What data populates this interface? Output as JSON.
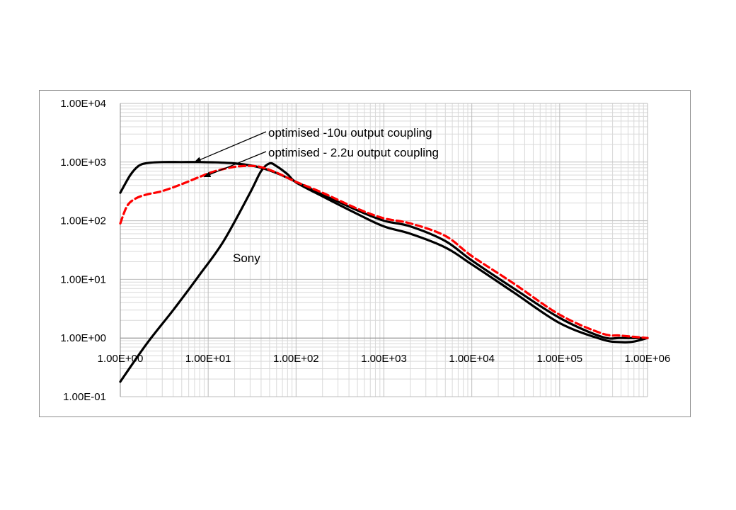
{
  "chart_data": {
    "type": "line",
    "x_scale": "log",
    "y_scale": "log",
    "xlim": [
      1,
      1000000
    ],
    "ylim": [
      0.1,
      10000
    ],
    "x_ticks": [
      "1.00E+00",
      "1.00E+01",
      "1.00E+02",
      "1.00E+03",
      "1.00E+04",
      "1.00E+05",
      "1.00E+06"
    ],
    "y_ticks": [
      "1.00E-01",
      "1.00E+00",
      "1.00E+01",
      "1.00E+02",
      "1.00E+03",
      "1.00E+04"
    ],
    "grid": "major and minor",
    "legend": "none",
    "series": [
      {
        "name": "optimised -10u output coupling",
        "color": "#000000",
        "style": "solid",
        "x": [
          1,
          1.3,
          1.6,
          2,
          3,
          5,
          8,
          12,
          20,
          30,
          40,
          60,
          100,
          200,
          500,
          1000,
          2000,
          5000,
          10000,
          30000,
          100000,
          300000,
          500000,
          1000000
        ],
        "y": [
          300,
          600,
          850,
          960,
          1000,
          1000,
          1000,
          990,
          950,
          880,
          800,
          650,
          460,
          280,
          150,
          100,
          80,
          45,
          21,
          7,
          2.2,
          1.05,
          1,
          1
        ]
      },
      {
        "name": "optimised - 2.2u output coupling",
        "color": "#ff0000",
        "style": "dashed",
        "x": [
          1,
          1.2,
          1.5,
          2,
          3,
          5,
          8,
          12,
          20,
          30,
          40,
          60,
          100,
          200,
          500,
          1000,
          2000,
          5000,
          10000,
          30000,
          100000,
          300000,
          500000,
          1000000
        ],
        "y": [
          90,
          180,
          240,
          280,
          320,
          420,
          560,
          700,
          830,
          860,
          820,
          660,
          460,
          300,
          160,
          110,
          90,
          55,
          25,
          8.5,
          2.5,
          1.2,
          1.1,
          1
        ]
      },
      {
        "name": "Sony",
        "color": "#000000",
        "style": "solid",
        "x": [
          1,
          2,
          4,
          8,
          15,
          30,
          40,
          50,
          60,
          80,
          100,
          200,
          500,
          1000,
          2000,
          5000,
          10000,
          30000,
          100000,
          300000,
          500000,
          700000,
          1000000
        ],
        "y": [
          0.18,
          0.8,
          3,
          12,
          45,
          300,
          700,
          950,
          850,
          620,
          450,
          260,
          130,
          80,
          60,
          35,
          18,
          6,
          1.8,
          0.95,
          0.85,
          0.87,
          1
        ]
      }
    ],
    "annotations": [
      {
        "text": "optimised -10u output coupling",
        "points_to": {
          "x": 7,
          "y": 1000
        }
      },
      {
        "text": "optimised - 2.2u output coupling",
        "points_to": {
          "x": 9,
          "y": 560
        }
      },
      {
        "text": "Sony"
      }
    ]
  }
}
